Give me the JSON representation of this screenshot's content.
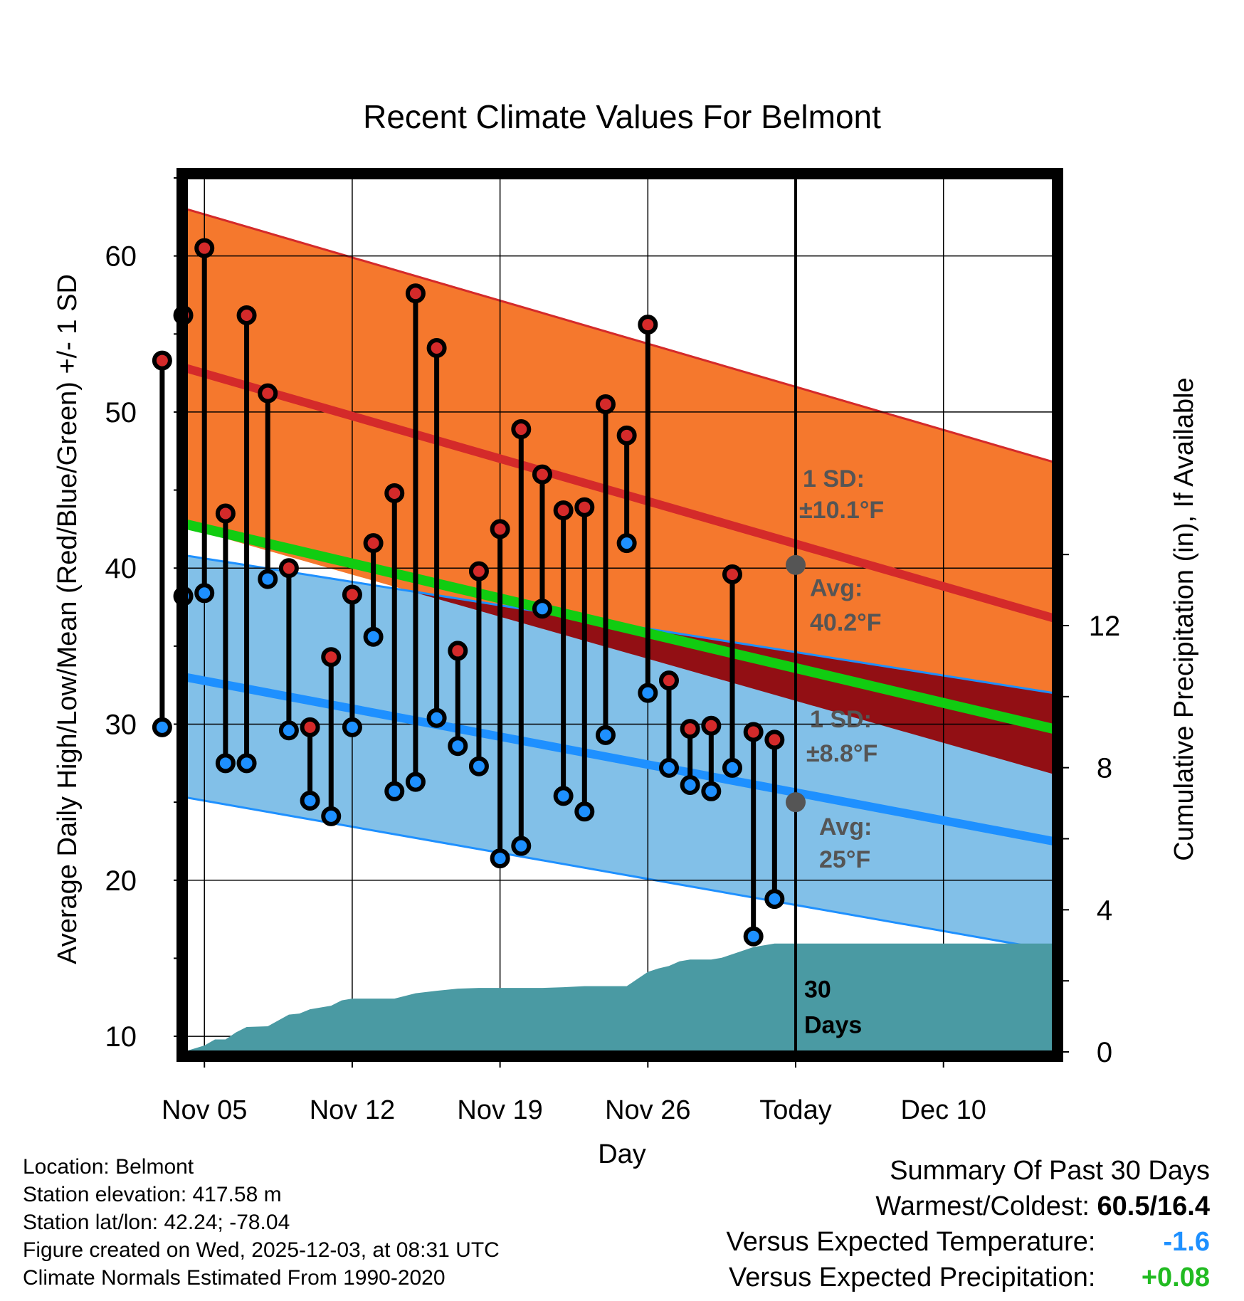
{
  "chart_data": {
    "type": "line",
    "title": "Recent Climate Values For Belmont",
    "xlabel": "Day",
    "ylabel": "Average Daily High/Low/Mean (Red/Blue/Green) +/- 1 SD",
    "ylabel_right": "Cumulative Precipitation (in), If Available",
    "ylim": [
      9,
      65
    ],
    "ylim_right": [
      0,
      24.6
    ],
    "xlim": [
      -0.85,
      40.2
    ],
    "x_ticks": [
      {
        "day": 0,
        "label": "Nov 05"
      },
      {
        "day": 7,
        "label": "Nov 12"
      },
      {
        "day": 14,
        "label": "Nov 19"
      },
      {
        "day": 21,
        "label": "Nov 26"
      },
      {
        "day": 28,
        "label": "Today"
      },
      {
        "day": 35,
        "label": "Dec 10"
      }
    ],
    "y_ticks": [
      10,
      20,
      30,
      40,
      50,
      60
    ],
    "y_ticks_right": [
      0,
      4,
      8,
      12
    ],
    "today_day": 28,
    "normals": {
      "high_avg": [
        52.8,
        36.8
      ],
      "high_sd_upper": [
        63.0,
        46.8
      ],
      "low_avg": [
        33.0,
        22.5
      ],
      "low_sd_upper": [
        40.8,
        32.0
      ],
      "low_sd_lower": [
        25.3,
        15.5
      ],
      "mean_avg": [
        42.8,
        29.7
      ]
    },
    "annotations": {
      "high_sd": [
        "1 SD:",
        "±10.1°F"
      ],
      "high_avg": [
        "Avg:",
        "40.2°F"
      ],
      "low_sd": [
        "1 SD:",
        "±8.8°F"
      ],
      "low_avg": [
        "Avg:",
        "25°F"
      ],
      "window": [
        "30",
        "Days"
      ],
      "high_today_value": 40.2,
      "low_today_value": 25.0
    },
    "days": [
      -2,
      -1,
      0,
      1,
      2,
      3,
      4,
      5,
      6,
      7,
      8,
      9,
      10,
      11,
      12,
      13,
      14,
      15,
      16,
      17,
      18,
      19,
      20,
      21,
      22,
      23,
      24,
      25,
      26,
      27
    ],
    "series": [
      {
        "name": "High",
        "color": "#d42a2a",
        "values": [
          53.3,
          56.2,
          60.5,
          43.5,
          56.2,
          51.2,
          40.0,
          29.8,
          34.3,
          38.3,
          41.6,
          44.8,
          57.6,
          54.1,
          34.7,
          39.8,
          42.5,
          48.9,
          46.0,
          43.7,
          43.9,
          50.5,
          48.5,
          55.6,
          32.8,
          29.7,
          29.9,
          39.6,
          29.5,
          29.0
        ]
      },
      {
        "name": "Low",
        "color": "#1e90ff",
        "values": [
          29.8,
          38.2,
          38.4,
          27.5,
          27.5,
          39.3,
          29.6,
          25.1,
          24.1,
          29.8,
          35.6,
          25.7,
          26.3,
          30.4,
          28.6,
          27.3,
          21.4,
          22.2,
          37.4,
          25.4,
          24.4,
          29.3,
          41.6,
          32.0,
          27.2,
          26.1,
          25.7,
          27.2,
          16.4,
          18.8
        ]
      },
      {
        "name": "Cumulative Precipitation",
        "color": "#4a9aa3",
        "x": [
          -2.5,
          -1,
          0,
          0.5,
          1,
          1.5,
          2,
          3,
          4,
          4.5,
          5,
          6,
          6.5,
          7,
          8,
          9,
          10,
          11,
          12,
          13,
          14,
          15,
          16,
          17,
          18,
          19,
          20,
          20.5,
          21,
          21.5,
          22,
          22.5,
          23,
          24,
          24.5,
          25,
          26,
          27,
          28,
          40.2
        ],
        "values": [
          0.0,
          0.0,
          0.18,
          0.35,
          0.35,
          0.55,
          0.7,
          0.72,
          1.05,
          1.08,
          1.2,
          1.3,
          1.45,
          1.5,
          1.5,
          1.5,
          1.65,
          1.72,
          1.78,
          1.8,
          1.8,
          1.8,
          1.8,
          1.82,
          1.85,
          1.85,
          1.85,
          2.05,
          2.25,
          2.35,
          2.42,
          2.55,
          2.6,
          2.6,
          2.65,
          2.75,
          2.95,
          3.05,
          3.05,
          3.05
        ]
      }
    ]
  },
  "info": {
    "location": "Location: Belmont",
    "elevation": "Station elevation: 417.58 m",
    "latlon": "Station lat/lon: 42.24; -78.04",
    "created": "Figure created on Wed, 2025-12-03, at 08:31 UTC",
    "normals": "Climate Normals Estimated From 1990-2020"
  },
  "summary": {
    "title": "Summary Of Past 30 Days",
    "warm_cold_label": "Warmest/Coldest:",
    "warm_cold_value": "60.5/16.4",
    "temp_label": "Versus Expected Temperature:",
    "temp_value": "-1.6",
    "temp_color": "#1e90ff",
    "precip_label": "Versus Expected Precipitation:",
    "precip_value": "+0.08",
    "precip_color": "#22bb22"
  },
  "colors": {
    "high_band": "#f5782d",
    "high_line": "#d42a2a",
    "low_band": "#82c0e8",
    "low_line": "#1e90ff",
    "mean_line": "#11cc11",
    "overlap": "#920f14",
    "precip": "#4a9aa3",
    "marker_gray": "#555555"
  }
}
